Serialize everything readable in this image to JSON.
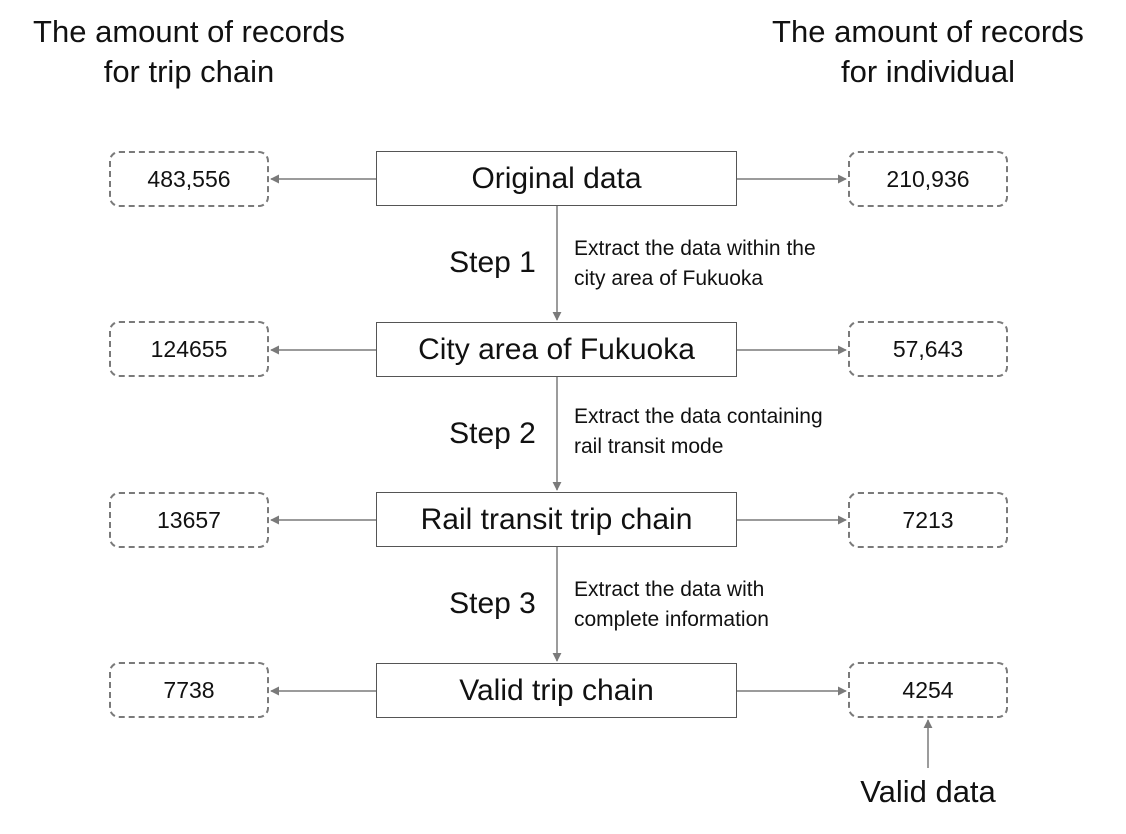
{
  "headers": {
    "left": "The amount of records\nfor trip chain",
    "right": "The amount of records\nfor individual"
  },
  "stages": [
    {
      "label": "Original data",
      "trip_chain_count": "483,556",
      "individual_count": "210,936"
    },
    {
      "label": "City area of Fukuoka",
      "trip_chain_count": "124655",
      "individual_count": "57,643"
    },
    {
      "label": "Rail transit trip chain",
      "trip_chain_count": "13657",
      "individual_count": "7213"
    },
    {
      "label": "Valid trip chain",
      "trip_chain_count": "7738",
      "individual_count": "4254"
    }
  ],
  "steps": [
    {
      "label": "Step 1",
      "description": "Extract the data within the\ncity area of Fukuoka"
    },
    {
      "label": "Step 2",
      "description": "Extract the data containing\nrail transit mode"
    },
    {
      "label": "Step 3",
      "description": "Extract the data with\ncomplete information"
    }
  ],
  "valid_label": "Valid data",
  "colors": {
    "arrow": "#7a7a7a",
    "box_border": "#555555",
    "dashed_border": "#7a7a7a"
  }
}
